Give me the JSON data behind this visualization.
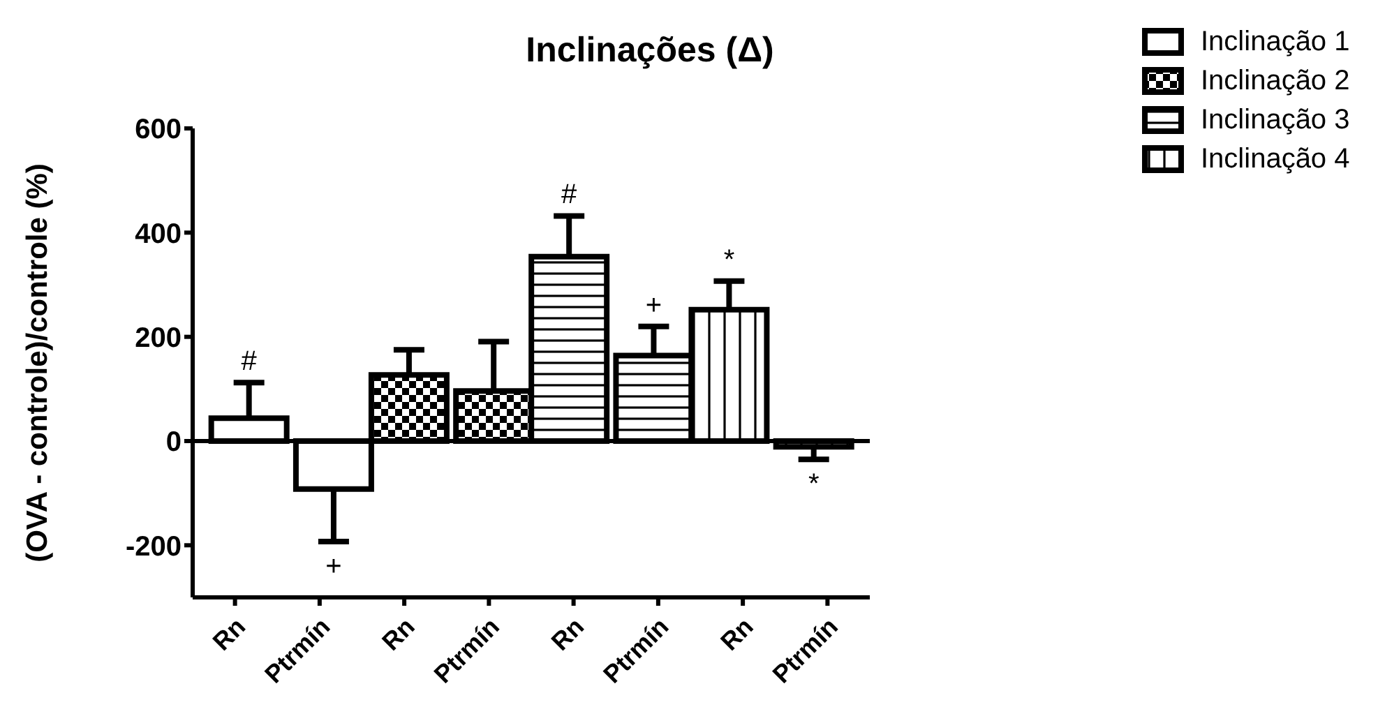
{
  "chart_data": {
    "type": "bar",
    "title": "Inclinações (Δ)",
    "ylabel": "(OVA - controle)/controle  (%)",
    "categories": [
      "Rn",
      "Ptrmín",
      "Rn",
      "Ptrmín",
      "Rn",
      "Ptrmín",
      "Rn",
      "Ptrmín"
    ],
    "series": [
      {
        "name": "Inclinação 1",
        "color": "#000000",
        "values": [
          44,
          -92,
          null,
          null,
          null,
          null,
          null,
          null
        ],
        "errors": [
          [
            44,
            112
          ],
          [
            -193,
            -92
          ],
          null,
          null,
          null,
          null,
          null,
          null
        ],
        "value_labels": [
          "#",
          "+",
          null,
          null,
          null,
          null,
          null,
          null
        ]
      },
      {
        "name": "Inclinação 2",
        "color": "#000000",
        "values": [
          null,
          null,
          127,
          96,
          null,
          null,
          null,
          null
        ],
        "errors": [
          null,
          null,
          [
            127,
            175
          ],
          [
            96,
            191
          ],
          null,
          null,
          null,
          null
        ],
        "value_labels": [
          null,
          null,
          null,
          null,
          null,
          null,
          null,
          null
        ]
      },
      {
        "name": "Inclinação 3",
        "color": "#000000",
        "values": [
          null,
          null,
          null,
          null,
          354,
          164,
          null,
          null
        ],
        "errors": [
          null,
          null,
          null,
          null,
          [
            354,
            432
          ],
          [
            164,
            220
          ],
          null,
          null
        ],
        "value_labels": [
          null,
          null,
          null,
          null,
          "#",
          "+",
          null,
          null
        ]
      },
      {
        "name": "Inclinação 4",
        "color": "#000000",
        "values": [
          null,
          null,
          null,
          null,
          null,
          null,
          252,
          -11
        ],
        "errors": [
          null,
          null,
          null,
          null,
          null,
          null,
          [
            252,
            307
          ],
          [
            -35,
            -11
          ]
        ],
        "value_labels": [
          null,
          null,
          null,
          null,
          null,
          null,
          "*",
          "*"
        ]
      }
    ],
    "ylim": [
      -300,
      600
    ],
    "yticks": [
      -200,
      0,
      200,
      400,
      600
    ],
    "ref_lines": [
      {
        "axis": "y",
        "value": 0
      }
    ],
    "legend": "top right",
    "grid": false
  }
}
